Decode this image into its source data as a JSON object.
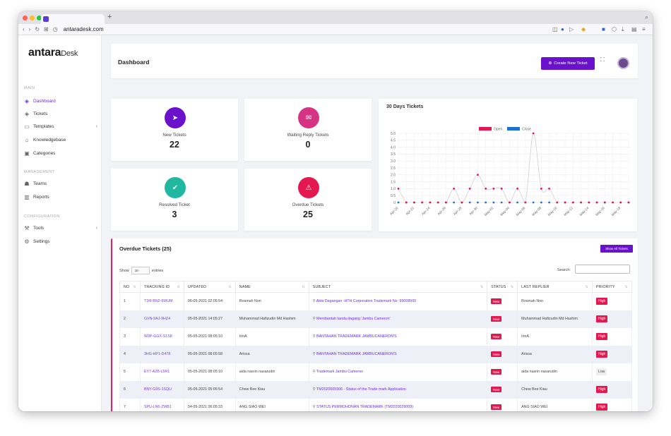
{
  "browser": {
    "url": "antaradesk.com",
    "new_tab": "+"
  },
  "sidebar": {
    "logo_main": "antara",
    "logo_sub": "Desk",
    "sections": [
      {
        "label": "MAIN"
      },
      {
        "label": "MANAGEMENT"
      },
      {
        "label": "CONFIGURATION"
      }
    ],
    "items": [
      {
        "label": "Dashboard"
      },
      {
        "label": "Tickets"
      },
      {
        "label": "Templates"
      },
      {
        "label": "Knowledgebase"
      },
      {
        "label": "Categories"
      },
      {
        "label": "Teams"
      },
      {
        "label": "Reports"
      },
      {
        "label": "Tools"
      },
      {
        "label": "Settings"
      }
    ]
  },
  "header": {
    "title": "Dashboard",
    "create_button": "Create New Ticket"
  },
  "stats": [
    {
      "label": "New Tickets",
      "value": "22",
      "color": "#6a11cb"
    },
    {
      "label": "Waiting Reply Tickets",
      "value": "0",
      "color": "#d63384"
    },
    {
      "label": "Resolved Ticket",
      "value": "3",
      "color": "#20b8a0"
    },
    {
      "label": "Overdue Tickets",
      "value": "25",
      "color": "#e4174f"
    }
  ],
  "chart_data": {
    "type": "line",
    "title": "30 Days Tickets",
    "categories": [
      "Apr-20",
      "Apr-21",
      "Apr-22",
      "Apr-23",
      "Apr-24",
      "Apr-25",
      "Apr-26",
      "Apr-27",
      "Apr-28",
      "Apr-29",
      "Apr-30",
      "May-01",
      "May-02",
      "May-03",
      "May-04",
      "May-05",
      "May-06",
      "May-07",
      "May-08",
      "May-09",
      "May-10",
      "May-11",
      "May-12",
      "May-13",
      "May-14",
      "May-15",
      "May-16",
      "May-17",
      "May-18",
      "May-19"
    ],
    "tick_labels": [
      "Apr-20",
      "Apr-22",
      "Apr-24",
      "Apr-26",
      "Apr-28",
      "Apr-30",
      "May-02",
      "May-04",
      "May-06",
      "May-08",
      "May-10",
      "May-12",
      "May-14",
      "May-16",
      "May-18"
    ],
    "series": [
      {
        "name": "Open",
        "color": "#e4174f",
        "values": [
          1,
          0,
          0,
          0,
          0,
          0,
          0,
          1,
          0,
          1,
          2,
          1,
          1,
          1,
          0,
          1,
          0,
          5,
          1,
          1,
          0,
          0,
          0,
          0,
          0,
          0,
          0,
          0,
          0,
          0
        ]
      },
      {
        "name": "Close",
        "color": "#1e6fd9",
        "values": [
          0,
          0,
          0,
          0,
          0,
          0,
          0,
          0,
          0,
          0,
          0,
          0,
          0,
          0,
          0,
          0,
          0,
          0,
          0,
          0,
          0,
          0,
          0,
          0,
          0,
          0,
          0,
          0,
          0,
          0
        ]
      }
    ],
    "ylim": [
      0,
      5
    ],
    "yticks": [
      "5.0",
      "4.5",
      "4.0",
      "3.5",
      "3.0",
      "2.5",
      "2.0",
      "1.5",
      "1.0",
      "0.5",
      "0"
    ],
    "legend": "top-center",
    "grid": true
  },
  "table": {
    "title": "Overdue Tickets (25)",
    "show_all": "Show All Tickets",
    "show_label": "Show",
    "entries_value": "10",
    "entries_label": "entries",
    "search_label": "Search:",
    "columns": [
      "NO",
      "TRACKING ID",
      "UPDATED",
      "NAME",
      "SUBJECT",
      "STATUS",
      "LAST REPLIER",
      "PRIORITY"
    ],
    "rows": [
      {
        "no": "1",
        "id": "T1M-BN2-6WUM",
        "updated": "06-05-2021 02:05:54",
        "name": "Rosmah Non",
        "subject": "Akta Dagangan -HTH Corporation Trademark No :99008500",
        "status": "New",
        "replier": "Rosmah Non",
        "priority": "High"
      },
      {
        "no": "2",
        "id": "GVN-9AJ-9HZ4",
        "updated": "05-05-2021 14:05:27",
        "name": "Muhammad Hafizudin Md Hashim",
        "subject": "Membantah tanda dagang 'Jambu Cameron'",
        "status": "New",
        "replier": "Muhammad Hafizudin Md Hashim",
        "priority": "High"
      },
      {
        "no": "3",
        "id": "W3P-GGX-S1S8",
        "updated": "05-05-2021 08:05:10",
        "name": "IrinA",
        "subject": "BANTAHAN TRADEMARK JAMBUCANERON'S",
        "status": "New",
        "replier": "IrinA",
        "priority": "High"
      },
      {
        "no": "4",
        "id": "3HG-HP1-D478",
        "updated": "05-05-2021 08:05:58",
        "name": "Arissa",
        "subject": "BANTAHAN TRADEMARK JAMBUCANERON'S",
        "status": "New",
        "replier": "Arissa",
        "priority": "High"
      },
      {
        "no": "5",
        "id": "EY7-A2B-L5R1",
        "updated": "05-05-2021 08:05:10",
        "name": "aida nasrin nasarudin",
        "subject": "Trademark Jambu Cameron",
        "status": "New",
        "replier": "aida nasrin nasarudin",
        "priority": "Low"
      },
      {
        "no": "6",
        "id": "BNY-G9S-1SQU",
        "updated": "05-05-2021 05:05:54",
        "name": "Chew Bee Kiau",
        "subject": "TM2020005906 - Status of the Trade mark Application",
        "status": "New",
        "replier": "Chew Bee Kiau",
        "priority": "High"
      },
      {
        "no": "7",
        "id": "SPU-LN6-ZWB1",
        "updated": "04-05-2021 06:05:33",
        "name": "ANG SIAO WEI",
        "subject": "STATUS PERMOHONAN TRADEMARK (TM2020029009)",
        "status": "New",
        "replier": "ANG SIAO WEI",
        "priority": "High"
      }
    ]
  }
}
